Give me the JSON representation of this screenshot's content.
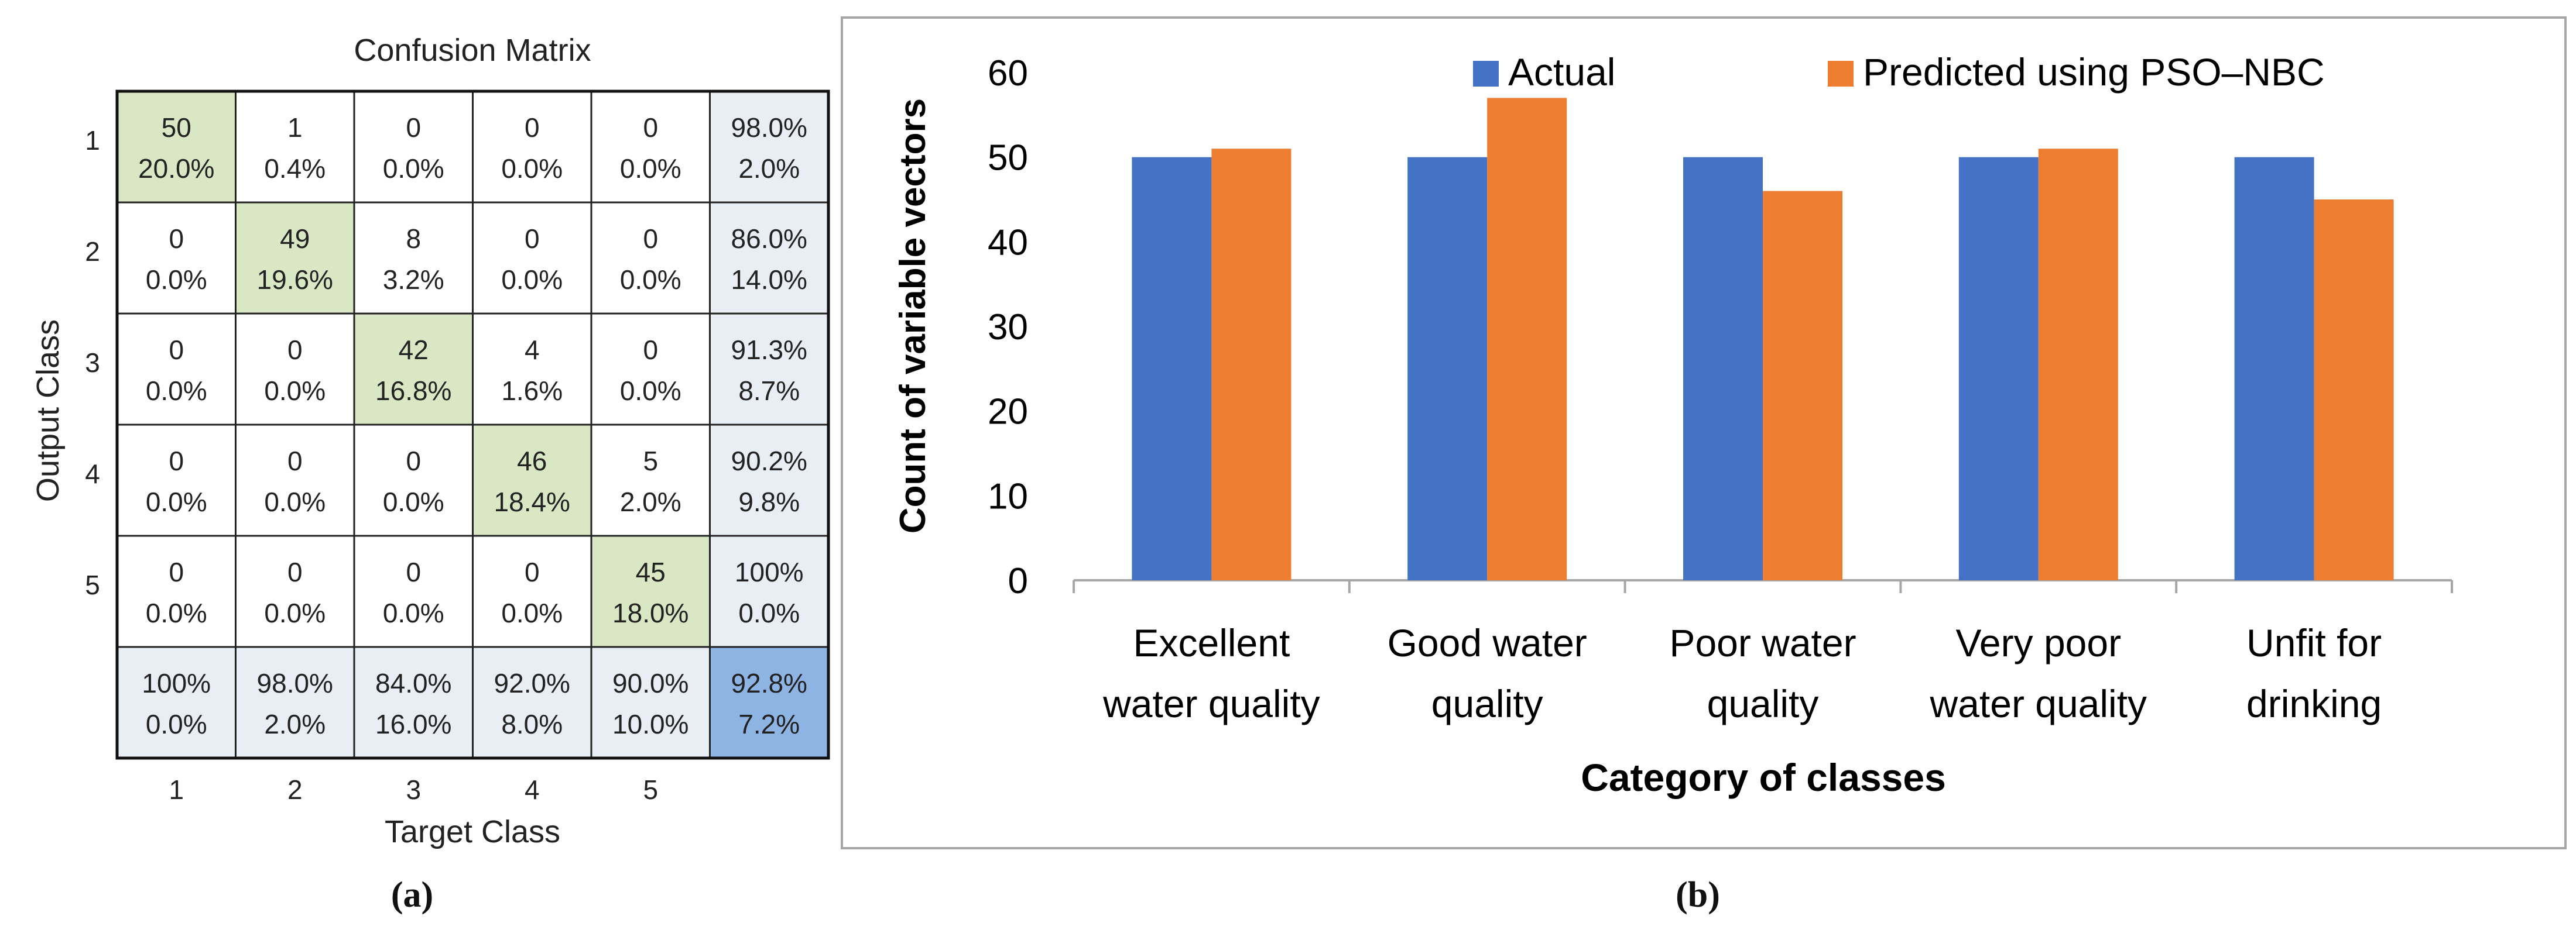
{
  "colors": {
    "diag": "#d9e7c4",
    "margin": "#e9edf4",
    "corner": "#8eb4e3",
    "cell": "#ffffff",
    "actual": "#4472c4",
    "predicted": "#ed7d31",
    "axis": "#a6a6a6",
    "frame": "#a6a6a6"
  },
  "chart_data": [
    {
      "type": "heatmap",
      "title": "Confusion Matrix",
      "xlabel": "Target Class",
      "ylabel": "Output Class",
      "row_labels": [
        "1",
        "2",
        "3",
        "4",
        "5"
      ],
      "col_labels": [
        "1",
        "2",
        "3",
        "4",
        "5"
      ],
      "counts": [
        [
          50,
          1,
          0,
          0,
          0
        ],
        [
          0,
          49,
          8,
          0,
          0
        ],
        [
          0,
          0,
          42,
          4,
          0
        ],
        [
          0,
          0,
          0,
          46,
          5
        ],
        [
          0,
          0,
          0,
          0,
          45
        ]
      ],
      "percents": [
        [
          "20.0%",
          "0.4%",
          "0.0%",
          "0.0%",
          "0.0%"
        ],
        [
          "0.0%",
          "19.6%",
          "3.2%",
          "0.0%",
          "0.0%"
        ],
        [
          "0.0%",
          "0.0%",
          "16.8%",
          "1.6%",
          "0.0%"
        ],
        [
          "0.0%",
          "0.0%",
          "0.0%",
          "18.4%",
          "2.0%"
        ],
        [
          "0.0%",
          "0.0%",
          "0.0%",
          "0.0%",
          "18.0%"
        ]
      ],
      "row_summary": [
        [
          "98.0%",
          "2.0%"
        ],
        [
          "86.0%",
          "14.0%"
        ],
        [
          "91.3%",
          "8.7%"
        ],
        [
          "90.2%",
          "9.8%"
        ],
        [
          "100%",
          "0.0%"
        ]
      ],
      "col_summary": [
        [
          "100%",
          "0.0%"
        ],
        [
          "98.0%",
          "2.0%"
        ],
        [
          "84.0%",
          "16.0%"
        ],
        [
          "92.0%",
          "8.0%"
        ],
        [
          "90.0%",
          "10.0%"
        ]
      ],
      "overall": [
        "92.8%",
        "7.2%"
      ],
      "caption": "(a)"
    },
    {
      "type": "bar",
      "categories": [
        "Excellent water quality",
        "Good water quality",
        "Poor water quality",
        "Very poor water quality",
        "Unfit for drinking"
      ],
      "category_lines": [
        [
          "Excellent",
          "water quality"
        ],
        [
          "Good water",
          "quality"
        ],
        [
          "Poor water",
          "quality"
        ],
        [
          "Very poor",
          "water quality"
        ],
        [
          "Unfit for",
          "drinking"
        ]
      ],
      "series": [
        {
          "name": "Actual",
          "values": [
            50,
            50,
            50,
            50,
            50
          ]
        },
        {
          "name": "Predicted using PSO–NBC",
          "values": [
            51,
            57,
            46,
            51,
            45
          ]
        }
      ],
      "xlabel": "Category of classes",
      "ylabel": "Count of variable vectors",
      "ylim": [
        0,
        60
      ],
      "yticks": [
        "0",
        "10",
        "20",
        "30",
        "40",
        "50",
        "60"
      ],
      "legend": "top",
      "caption": "(b)"
    }
  ]
}
